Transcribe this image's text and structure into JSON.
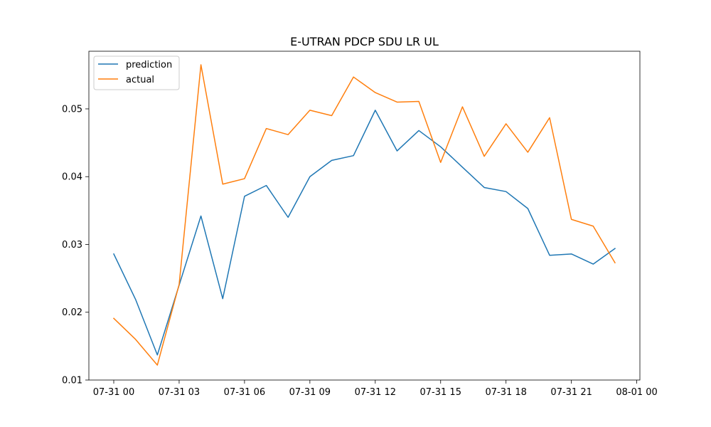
{
  "chart_data": {
    "type": "line",
    "title": "E-UTRAN PDCP SDU LR UL",
    "xlabel": "",
    "ylabel": "",
    "x": [
      "07-31 00:00",
      "07-31 01:00",
      "07-31 02:00",
      "07-31 03:00",
      "07-31 04:00",
      "07-31 05:00",
      "07-31 06:00",
      "07-31 07:00",
      "07-31 08:00",
      "07-31 09:00",
      "07-31 10:00",
      "07-31 11:00",
      "07-31 12:00",
      "07-31 13:00",
      "07-31 14:00",
      "07-31 15:00",
      "07-31 16:00",
      "07-31 17:00",
      "07-31 18:00",
      "07-31 19:00",
      "07-31 20:00",
      "07-31 21:00",
      "07-31 22:00",
      "07-31 23:00"
    ],
    "x_tick_labels": [
      "07-31 00",
      "07-31 03",
      "07-31 06",
      "07-31 09",
      "07-31 12",
      "07-31 15",
      "07-31 18",
      "07-31 21",
      "08-01 00"
    ],
    "y_ticks": [
      "0.01",
      "0.02",
      "0.03",
      "0.04",
      "0.05"
    ],
    "ylim": [
      0.01,
      0.0585
    ],
    "legend_position": "top-left",
    "grid": false,
    "series": [
      {
        "name": "prediction",
        "color": "#1f77b4",
        "values": [
          0.0286,
          0.0219,
          0.0137,
          0.024,
          0.0342,
          0.022,
          0.0371,
          0.0387,
          0.034,
          0.04,
          0.0424,
          0.0431,
          0.0498,
          0.0438,
          0.0468,
          0.0444,
          0.0414,
          0.0384,
          0.0378,
          0.0353,
          0.0284,
          0.0286,
          0.0271,
          0.0294
        ]
      },
      {
        "name": "actual",
        "color": "#ff7f0e",
        "values": [
          0.0191,
          0.016,
          0.0122,
          0.0241,
          0.0565,
          0.0389,
          0.0397,
          0.0471,
          0.0462,
          0.0498,
          0.049,
          0.0547,
          0.0524,
          0.051,
          0.0511,
          0.0421,
          0.0503,
          0.043,
          0.0478,
          0.0436,
          0.0487,
          0.0337,
          0.0327,
          0.0273
        ]
      }
    ]
  }
}
